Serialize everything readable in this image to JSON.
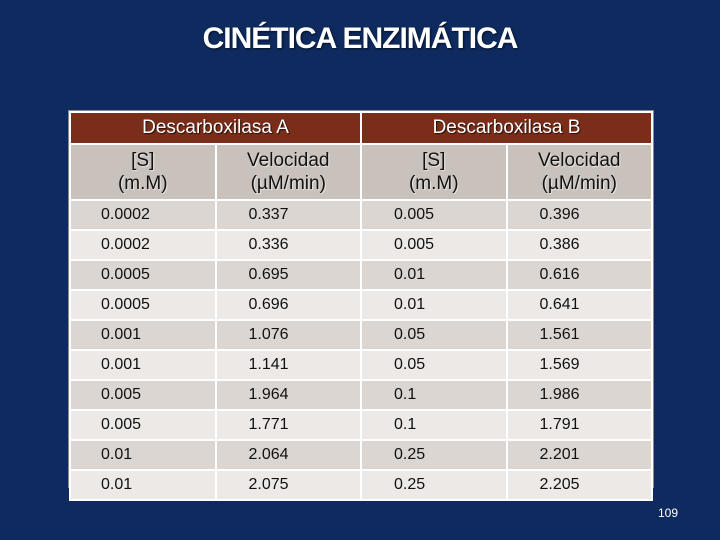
{
  "title": "CINÉTICA ENZIMÁTICA",
  "groups": [
    "Descarboxilasa A",
    "Descarboxilasa B"
  ],
  "columns": [
    {
      "line1": "[S]",
      "line2": "(m.M)"
    },
    {
      "line1": "Velocidad",
      "line2": "(µM/min)"
    },
    {
      "line1": "[S]",
      "line2": "(m.M)"
    },
    {
      "line1": "Velocidad",
      "line2": "(µM/min)"
    }
  ],
  "rows": [
    [
      "0.0002",
      "0.337",
      "0.005",
      "0.396"
    ],
    [
      "0.0002",
      "0.336",
      "0.005",
      "0.386"
    ],
    [
      "0.0005",
      "0.695",
      "0.01",
      "0.616"
    ],
    [
      "0.0005",
      "0.696",
      "0.01",
      "0.641"
    ],
    [
      "0.001",
      "1.076",
      "0.05",
      "1.561"
    ],
    [
      "0.001",
      "1.141",
      "0.05",
      "1.569"
    ],
    [
      "0.005",
      "1.964",
      "0.1",
      "1.986"
    ],
    [
      "0.005",
      "1.771",
      "0.1",
      "1.791"
    ],
    [
      "0.01",
      "2.064",
      "0.25",
      "2.201"
    ],
    [
      "0.01",
      "2.075",
      "0.25",
      "2.205"
    ]
  ],
  "page_number": "109",
  "colors": {
    "background": "#0e2a5e",
    "group_header": "#7a2e1a",
    "sub_header": "#c8c1bc",
    "row_odd": "#dcd6d2",
    "row_even": "#ece9e6"
  }
}
